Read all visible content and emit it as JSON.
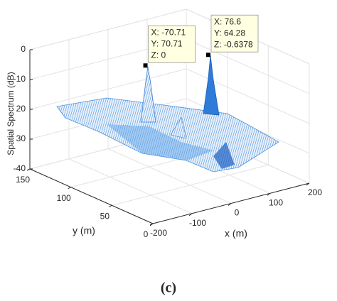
{
  "chart_data": {
    "type": "surface3d",
    "xlabel": "x (m)",
    "ylabel": "y (m)",
    "zlabel": "Spatial Spectrum (dB)",
    "caption": "(c)",
    "xlim": [
      -200,
      200
    ],
    "xticks": [
      -200,
      -100,
      0,
      100,
      200
    ],
    "ylim": [
      0,
      150
    ],
    "yticks": [
      0,
      50,
      100,
      150
    ],
    "zlim": [
      -40,
      0
    ],
    "zticks": [
      0,
      -10,
      {
        "value": -20,
        "label": "20"
      },
      {
        "value": -30,
        "label": "30"
      },
      -40
    ],
    "grid": true,
    "color": "#1f6fd6",
    "datatips": [
      {
        "x": -70.71,
        "y": 70.71,
        "z": 0,
        "labels": [
          "X: -70.71",
          "Y: 70.71",
          "Z: 0"
        ]
      },
      {
        "x": 76.6,
        "y": 64.28,
        "z": -0.6378,
        "labels": [
          "X: 76.6",
          "Y: 64.28",
          "Z: -0.6378"
        ]
      }
    ]
  }
}
